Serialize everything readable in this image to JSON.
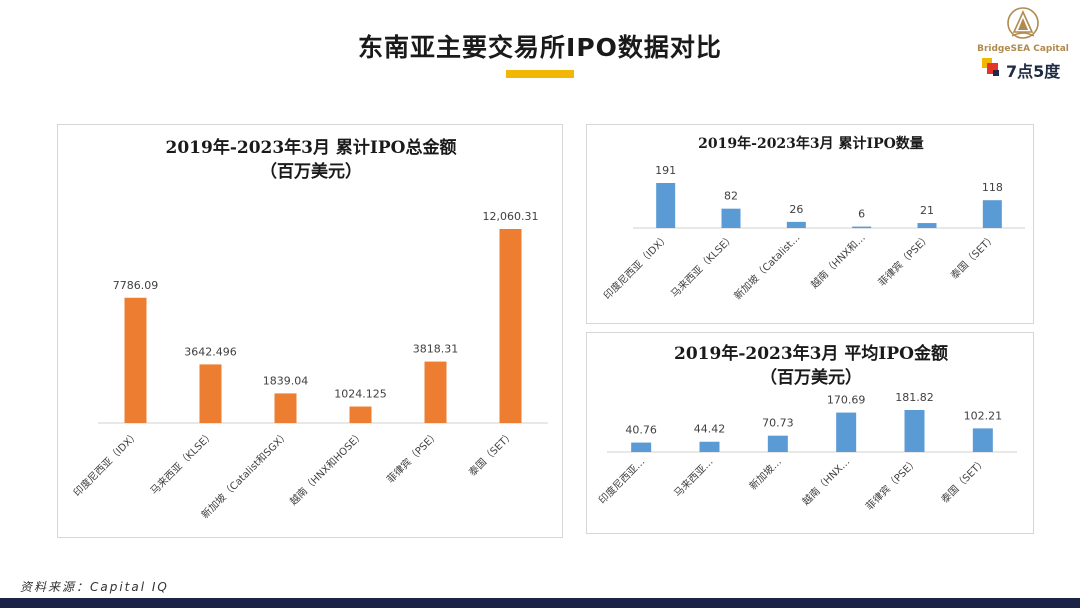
{
  "page": {
    "title": "东南亚主要交易所IPO数据对比",
    "source": "资料来源：Capital IQ"
  },
  "logo": {
    "brand": "BridgeSEA Capital",
    "tagline": "7点5度",
    "colors": {
      "gold": "#b08a4e",
      "red": "#e63329",
      "yellow": "#f2b705",
      "navy": "#1f2a44"
    }
  },
  "colors": {
    "orange_bar": "#ed7d31",
    "blue_bar": "#5b9bd5",
    "title_underline": "#f2b705",
    "footer": "#1b2346"
  },
  "chart_data": [
    {
      "id": "total",
      "type": "bar",
      "title": "2019年-2023年3月 累计IPO总金额",
      "subtitle": "（百万美元）",
      "categories": [
        "印度尼西亚（IDX）",
        "马来西亚（KLSE）",
        "新加坡（Catalist和SGX）",
        "越南（HNX和HOSE）",
        "菲律宾（PSE）",
        "泰国（SET）"
      ],
      "values": [
        7786.09,
        3642.496,
        1839.04,
        1024.125,
        3818.31,
        12060.31
      ],
      "value_labels": [
        "7786.09",
        "3642.496",
        "1839.04",
        "1024.125",
        "3818.31",
        "12,060.31"
      ],
      "color": "#ed7d31",
      "ylim": [
        0,
        12060.31
      ],
      "grid": false,
      "legend": "none"
    },
    {
      "id": "count",
      "type": "bar",
      "title": "2019年-2023年3月 累计IPO数量",
      "subtitle": "",
      "categories": [
        "印度尼西亚（IDX）",
        "马来西亚（KLSE）",
        "新加坡（Catalist…",
        "越南（HNX和…",
        "菲律宾（PSE）",
        "泰国（SET）"
      ],
      "values": [
        191,
        82,
        26,
        6,
        21,
        118
      ],
      "value_labels": [
        "191",
        "82",
        "26",
        "6",
        "21",
        "118"
      ],
      "color": "#5b9bd5",
      "ylim": [
        0,
        191
      ],
      "grid": false,
      "legend": "none"
    },
    {
      "id": "average",
      "type": "bar",
      "title": "2019年-2023年3月 平均IPO金额",
      "subtitle": "（百万美元）",
      "categories": [
        "印度尼西亚…",
        "马来西亚…",
        "新加坡…",
        "越南（HNX…",
        "菲律宾（PSE）",
        "泰国（SET）"
      ],
      "values": [
        40.76,
        44.42,
        70.73,
        170.69,
        181.82,
        102.21
      ],
      "value_labels": [
        "40.76",
        "44.42",
        "70.73",
        "170.69",
        "181.82",
        "102.21"
      ],
      "color": "#5b9bd5",
      "ylim": [
        0,
        181.82
      ],
      "grid": false,
      "legend": "none"
    }
  ]
}
